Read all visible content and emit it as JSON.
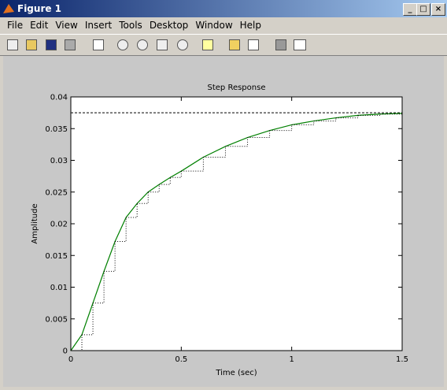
{
  "window": {
    "title": "Figure 1"
  },
  "menu": [
    "File",
    "Edit",
    "View",
    "Insert",
    "Tools",
    "Desktop",
    "Window",
    "Help"
  ],
  "chart_data": {
    "type": "line",
    "title": "Step Response",
    "x_label": "Time (sec)",
    "y_label": "Amplitude",
    "x": [
      0,
      0.05,
      0.1,
      0.15,
      0.2,
      0.25,
      0.3,
      0.35,
      0.4,
      0.45,
      0.5,
      0.6,
      0.7,
      0.8,
      0.9,
      1.0,
      1.1,
      1.2,
      1.3,
      1.4,
      1.5
    ],
    "series": [
      {
        "color": "#008000",
        "values": [
          0,
          0.0025,
          0.0075,
          0.0125,
          0.0172,
          0.021,
          0.0232,
          0.025,
          0.0262,
          0.0273,
          0.0283,
          0.0305,
          0.0322,
          0.0336,
          0.0347,
          0.0356,
          0.0362,
          0.0367,
          0.0371,
          0.0373,
          0.0374
        ]
      },
      {
        "color": "#000000",
        "step": true,
        "values": [
          0,
          0.0025,
          0.0075,
          0.0125,
          0.0172,
          0.021,
          0.0232,
          0.025,
          0.0262,
          0.0273,
          0.0283,
          0.0305,
          0.0322,
          0.0336,
          0.0347,
          0.0356,
          0.0362,
          0.0367,
          0.0371,
          0.0373,
          0.0374
        ]
      }
    ],
    "steady_state": 0.0375,
    "xlim": [
      0,
      1.5
    ],
    "xticks": [
      0,
      0.5,
      1,
      1.5
    ],
    "ylim": [
      0,
      0.04
    ],
    "yticks": [
      0,
      0.005,
      0.01,
      0.015,
      0.02,
      0.025,
      0.03,
      0.035,
      0.04
    ]
  }
}
